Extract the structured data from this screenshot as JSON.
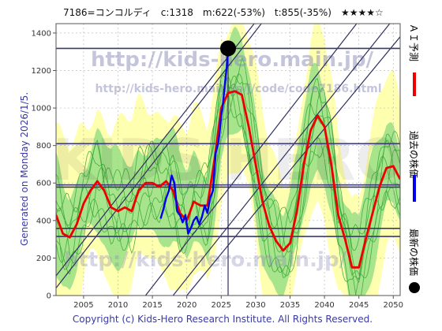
{
  "header": {
    "title": "7186=コンコルディ　c:1318　m:622(-53%)　t:855(-35%)　★★★★☆"
  },
  "side_label": "Generated on Monday 2026/1/5.",
  "footer": "Copyright (c) Kids-Hero Research Institute. All Rights Reserved.",
  "watermark": {
    "url_big": "http://kids-hero.main.jp/",
    "url_small": "http://kids-hero.main.jp/j/code/code7186.html",
    "url_bottom": "http://kids-hero.main.jp/",
    "logo": "KIDS HERO"
  },
  "legend": [
    {
      "name": "ＡＩ予測",
      "color": "#ee0000",
      "marker": "line"
    },
    {
      "name": "過去の株価",
      "color": "#0000ee",
      "marker": "line"
    },
    {
      "name": "最新の株価",
      "color": "#000000",
      "marker": "dot"
    }
  ],
  "colors": {
    "band_yellow": "#ffffb0",
    "band_green": "#a8e48c",
    "thin_green": "#36a836",
    "channel": "#303060",
    "hline": "#3a3a70",
    "prediction": "#ee0000",
    "past": "#0000ee",
    "latest": "#000000"
  },
  "chart_data": {
    "type": "line",
    "xlim": [
      2001,
      2051
    ],
    "ylim": [
      0,
      1450
    ],
    "x_ticks": [
      2005,
      2010,
      2015,
      2020,
      2025,
      2030,
      2035,
      2040,
      2045,
      2050
    ],
    "y_ticks": [
      0,
      200,
      400,
      600,
      800,
      1000,
      1200,
      1400
    ],
    "grid": true,
    "horizontal_levels": [
      1318,
      810,
      590,
      578,
      358,
      315
    ],
    "channel_lines": [
      {
        "x": [
          2001,
          2033
        ],
        "y": [
          105,
          1600
        ]
      },
      {
        "x": [
          2001,
          2034
        ],
        "y": [
          40,
          1600
        ]
      },
      {
        "x": [
          2014,
          2047
        ],
        "y": [
          0,
          1560
        ]
      },
      {
        "x": [
          2018,
          2051
        ],
        "y": [
          0,
          1520
        ]
      },
      {
        "x": [
          2020,
          2051
        ],
        "y": [
          0,
          1380
        ]
      }
    ],
    "series": [
      {
        "name": "ＡＩ予測",
        "x": [
          2001,
          2002,
          2003,
          2004,
          2005,
          2006,
          2007,
          2008,
          2009,
          2010,
          2011,
          2012,
          2013,
          2014,
          2015,
          2016,
          2017,
          2018,
          2019,
          2020,
          2021,
          2022,
          2023,
          2024,
          2025,
          2026,
          2027,
          2028,
          2029,
          2030,
          2031,
          2032,
          2033,
          2034,
          2035,
          2036,
          2037,
          2038,
          2039,
          2040,
          2041,
          2042,
          2043,
          2044,
          2045,
          2046,
          2047,
          2048,
          2049,
          2050,
          2051
        ],
        "y": [
          430,
          330,
          310,
          380,
          490,
          560,
          610,
          560,
          470,
          450,
          470,
          450,
          560,
          600,
          600,
          580,
          610,
          560,
          440,
          400,
          500,
          480,
          480,
          720,
          1000,
          1080,
          1090,
          1070,
          900,
          700,
          500,
          370,
          290,
          240,
          280,
          450,
          700,
          880,
          960,
          900,
          700,
          430,
          300,
          150,
          150,
          300,
          440,
          580,
          680,
          690,
          620
        ]
      },
      {
        "name": "過去の株価",
        "x": [
          2016.2,
          2016.6,
          2017.0,
          2017.4,
          2017.8,
          2018.2,
          2018.6,
          2019.0,
          2019.4,
          2019.8,
          2020.2,
          2020.6,
          2021.0,
          2021.4,
          2021.8,
          2022.2,
          2022.6,
          2023.0,
          2023.4,
          2023.8,
          2024.2,
          2024.6,
          2024.8,
          2025.0,
          2025.2,
          2025.4,
          2025.6,
          2025.8,
          2025.95
        ],
        "y": [
          410,
          460,
          520,
          560,
          640,
          600,
          450,
          430,
          390,
          430,
          330,
          360,
          400,
          420,
          380,
          420,
          480,
          440,
          520,
          560,
          760,
          820,
          880,
          960,
          1000,
          1080,
          1150,
          1220,
          1318
        ]
      }
    ],
    "latest_point": {
      "x": 2026.0,
      "y": 1318
    }
  }
}
